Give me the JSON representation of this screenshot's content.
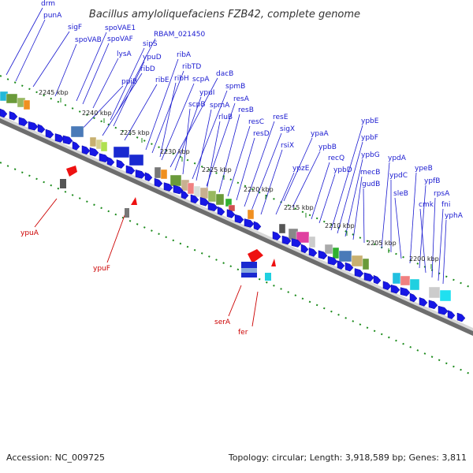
{
  "title": "Bacillus amyloliquefaciens FZB42, complete genome",
  "accession": "Accession: NC_009725",
  "summary": "Topology: circular; Length: 3,918,589 bp; Genes: 3,811",
  "ticks": [
    "2245 kbp",
    "2240 kbp",
    "2235 kbp",
    "2230 kbp",
    "2225 kbp",
    "2220 kbp",
    "2215 kbp",
    "2210 kbp",
    "2205 kbp",
    "2200 kbp"
  ],
  "forward_genes": [
    "drm",
    "punA",
    "sigF",
    "spoVAB",
    "spoVAE1",
    "spoVAF",
    "lysA",
    "RBAM_021450",
    "sipS",
    "ypuD",
    "ppiB",
    "ribD",
    "ribE",
    "ribA",
    "ribTD",
    "ribH",
    "scpA",
    "dacB",
    "ypuI",
    "scpB",
    "spmB",
    "spmA",
    "resA",
    "rluB",
    "resB",
    "resC",
    "resD",
    "resE",
    "sigX",
    "rsiX",
    "ypaA",
    "ypbB",
    "ypzE",
    "recQ",
    "ypbD",
    "ypbE",
    "ypbF",
    "ypbG",
    "mecB",
    "gudB",
    "ypdA",
    "ypdC",
    "sleB",
    "ypeB",
    "ypfB",
    "cmk",
    "rpsA",
    "fni",
    "yphA"
  ],
  "reverse_genes": [
    "ypuA",
    "ypuF",
    "serA",
    "fer"
  ]
}
